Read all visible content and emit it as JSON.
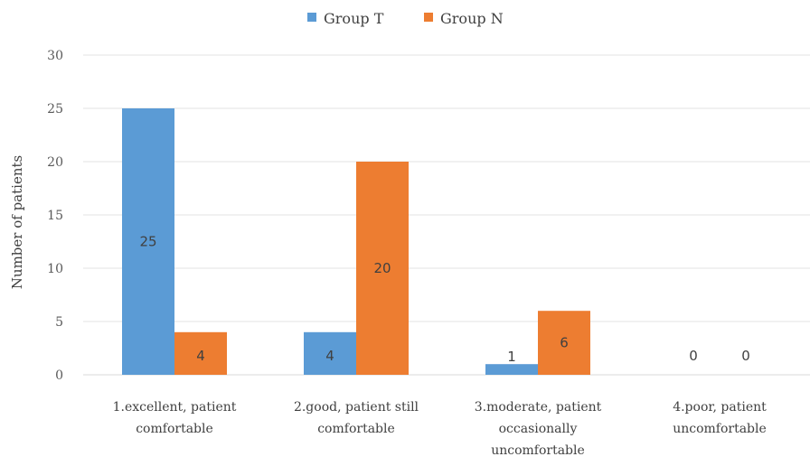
{
  "chart_data": {
    "type": "bar",
    "title": "",
    "xlabel": "",
    "ylabel": "Number of patients",
    "ylim": [
      0,
      30
    ],
    "yticks": [
      0,
      5,
      10,
      15,
      20,
      25,
      30
    ],
    "grid": true,
    "legend_position": "top",
    "categories": [
      [
        "1.excellent, patient",
        "comfortable"
      ],
      [
        "2.good, patient still",
        "comfortable"
      ],
      [
        "3.moderate, patient",
        "occasionally",
        "uncomfortable"
      ],
      [
        "4.poor, patient",
        "uncomfortable"
      ]
    ],
    "series": [
      {
        "name": "Group T",
        "color": "#5B9BD5",
        "values": [
          25,
          4,
          1,
          0
        ]
      },
      {
        "name": "Group N",
        "color": "#ED7D31",
        "values": [
          4,
          20,
          6,
          0
        ]
      }
    ]
  }
}
